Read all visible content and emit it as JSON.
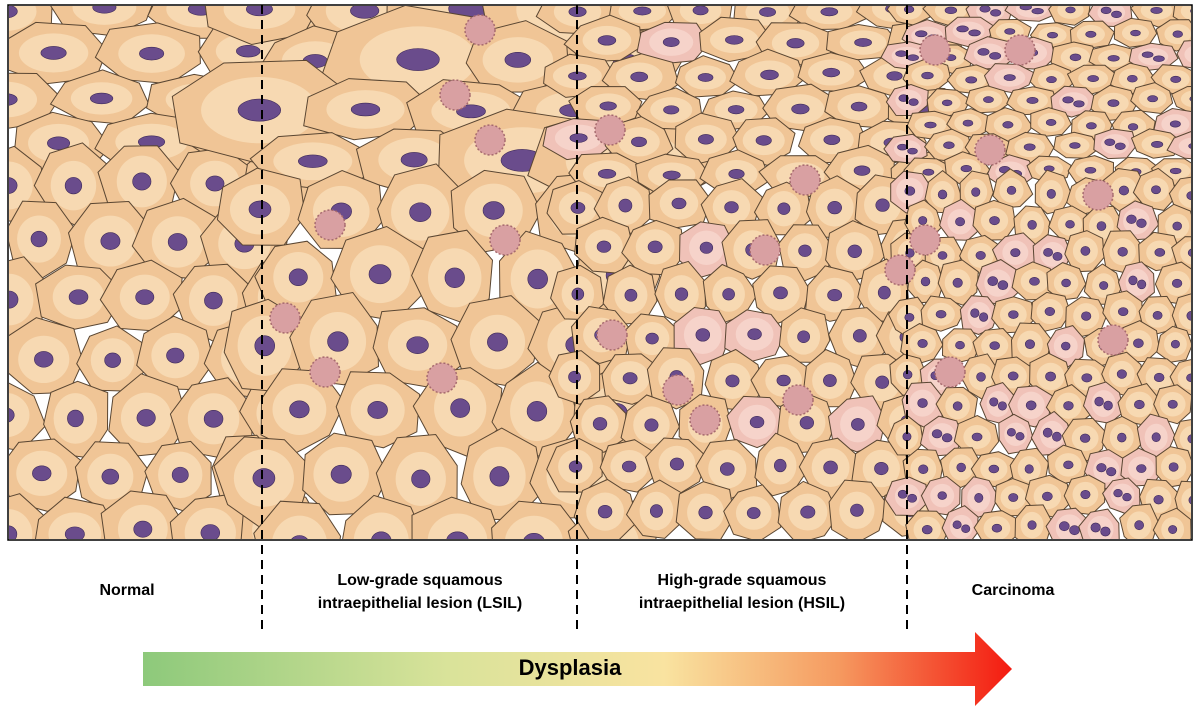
{
  "stages": [
    {
      "lines": [
        "Normal"
      ]
    },
    {
      "lines": [
        "Low-grade squamous",
        "intraepithelial lesion (LSIL)"
      ]
    },
    {
      "lines": [
        "High-grade squamous",
        "intraepithelial lesion (HSIL)"
      ]
    },
    {
      "lines": [
        "Carcinoma"
      ]
    }
  ],
  "arrow": {
    "label": "Dysplasia"
  }
}
